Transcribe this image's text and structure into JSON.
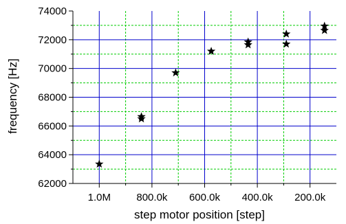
{
  "chart_data": {
    "type": "scatter",
    "title": "",
    "xlabel": "step motor position [step]",
    "ylabel": "frequency [Hz]",
    "x_axis_reversed": true,
    "xlim": [
      1100000,
      100000
    ],
    "ylim": [
      62000,
      74000
    ],
    "x_ticks": [
      {
        "value": 1000000,
        "label": "1.0M"
      },
      {
        "value": 800000,
        "label": "800.0k"
      },
      {
        "value": 600000,
        "label": "600.0k"
      },
      {
        "value": 400000,
        "label": "400.0k"
      },
      {
        "value": 200000,
        "label": "200.0k"
      }
    ],
    "x_minor_ticks": [
      900000,
      700000,
      500000,
      300000
    ],
    "y_ticks": [
      {
        "value": 62000,
        "label": "62000"
      },
      {
        "value": 64000,
        "label": "64000"
      },
      {
        "value": 66000,
        "label": "66000"
      },
      {
        "value": 68000,
        "label": "68000"
      },
      {
        "value": 70000,
        "label": "70000"
      },
      {
        "value": 72000,
        "label": "72000"
      },
      {
        "value": 74000,
        "label": "74000"
      }
    ],
    "y_minor_ticks": [
      63000,
      65000,
      67000,
      69000,
      71000,
      73000
    ],
    "grid": "on",
    "colors": {
      "major_grid": "#0000cc",
      "minor_grid": "#00cc00",
      "marker": "#000000"
    },
    "series": [
      {
        "marker": "star",
        "points": [
          {
            "x": 1000000,
            "y": 63350
          },
          {
            "x": 840000,
            "y": 66650
          },
          {
            "x": 840000,
            "y": 66500
          },
          {
            "x": 710000,
            "y": 69700
          },
          {
            "x": 575000,
            "y": 71200
          },
          {
            "x": 435000,
            "y": 71850
          },
          {
            "x": 435000,
            "y": 71650
          },
          {
            "x": 290000,
            "y": 72400
          },
          {
            "x": 290000,
            "y": 71700
          },
          {
            "x": 145000,
            "y": 72950
          },
          {
            "x": 145000,
            "y": 72650
          }
        ]
      }
    ]
  }
}
